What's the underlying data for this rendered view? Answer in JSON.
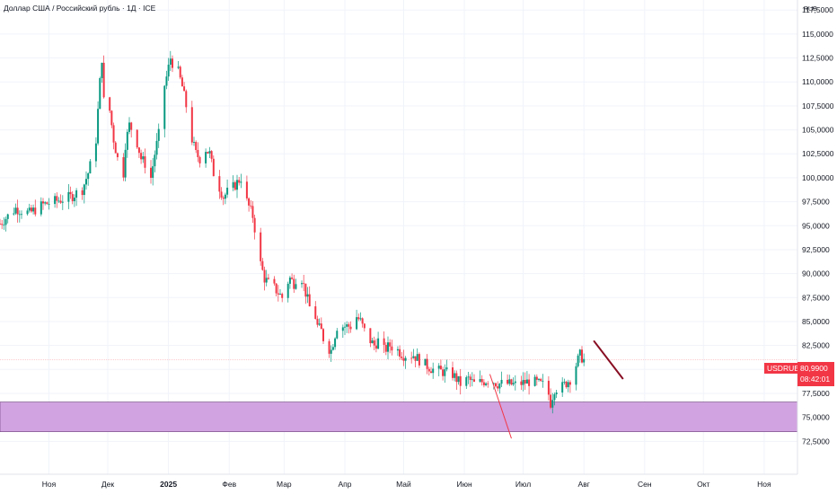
{
  "title": "Доллар США / Российский рубль · 1Д · ICE",
  "axis_unit": "RUB",
  "price_badge": {
    "symbol": "USDRUB",
    "price": "80,9900",
    "countdown": "08:42:01",
    "color": "#f23645"
  },
  "colors": {
    "up": "#089981",
    "down": "#f23645",
    "zone": "#d1a3e0",
    "trendline": "#880e23"
  },
  "chart_data": {
    "type": "candlestick",
    "title": "Доллар США / Российский рубль · 1Д · ICE",
    "y_ticks": [
      "72,5000",
      "75,0000",
      "77,5000",
      "80,0000",
      "82,5000",
      "85,0000",
      "87,5000",
      "90,0000",
      "92,5000",
      "95,0000",
      "97,5000",
      "100,0000",
      "102,5000",
      "105,0000",
      "107,5000",
      "110,0000",
      "112,5000",
      "115,0000",
      "117,5000"
    ],
    "ylim": [
      71.5,
      117.8
    ],
    "x_ticks": [
      {
        "label": "Ноя",
        "date": "2024-11-01"
      },
      {
        "label": "Дек",
        "date": "2024-12-01"
      },
      {
        "label": "2025",
        "date": "2025-01-01",
        "bold": true
      },
      {
        "label": "Фев",
        "date": "2025-02-01"
      },
      {
        "label": "Мар",
        "date": "2025-03-01"
      },
      {
        "label": "Апр",
        "date": "2025-04-01"
      },
      {
        "label": "Май",
        "date": "2025-05-01"
      },
      {
        "label": "Июн",
        "date": "2025-06-01"
      },
      {
        "label": "Июл",
        "date": "2025-07-01"
      },
      {
        "label": "Авг",
        "date": "2025-08-01"
      },
      {
        "label": "Сен",
        "date": "2025-09-01"
      },
      {
        "label": "Окт",
        "date": "2025-10-01"
      },
      {
        "label": "Ноя",
        "date": "2025-11-01"
      }
    ],
    "xlim": [
      "2024-10-07",
      "2025-11-18"
    ],
    "close_path": [
      [
        "2024-10-07",
        95.2
      ],
      [
        "2024-10-15",
        96.8
      ],
      [
        "2024-10-22",
        96.3
      ],
      [
        "2024-10-29",
        97.2
      ],
      [
        "2024-11-05",
        97.6
      ],
      [
        "2024-11-12",
        98.0
      ],
      [
        "2024-11-18",
        98.8
      ],
      [
        "2024-11-21",
        100.5
      ],
      [
        "2024-11-23",
        102.0
      ],
      [
        "2024-11-25",
        104.0
      ],
      [
        "2024-11-27",
        110.0
      ],
      [
        "2024-11-28",
        112.5
      ],
      [
        "2024-11-29",
        108.0
      ],
      [
        "2024-12-02",
        107.0
      ],
      [
        "2024-12-04",
        104.0
      ],
      [
        "2024-12-06",
        102.0
      ],
      [
        "2024-12-09",
        100.5
      ],
      [
        "2024-12-10",
        103.5
      ],
      [
        "2024-12-12",
        105.5
      ],
      [
        "2024-12-15",
        104.5
      ],
      [
        "2024-12-18",
        102.0
      ],
      [
        "2024-12-20",
        101.5
      ],
      [
        "2024-12-23",
        100.0
      ],
      [
        "2024-12-25",
        102.5
      ],
      [
        "2024-12-27",
        104.5
      ],
      [
        "2024-12-28",
        108.0
      ],
      [
        "2024-12-31",
        110.5
      ],
      [
        "2025-01-02",
        112.5
      ],
      [
        "2025-01-04",
        111.5
      ],
      [
        "2025-01-06",
        111.0
      ],
      [
        "2025-01-08",
        109.5
      ],
      [
        "2025-01-10",
        107.5
      ],
      [
        "2025-01-13",
        104.0
      ],
      [
        "2025-01-15",
        102.5
      ],
      [
        "2025-01-17",
        102.0
      ],
      [
        "2025-01-20",
        103.0
      ],
      [
        "2025-01-22",
        102.5
      ],
      [
        "2025-01-24",
        100.5
      ],
      [
        "2025-01-27",
        99.0
      ],
      [
        "2025-01-29",
        98.0
      ],
      [
        "2025-01-31",
        98.5
      ],
      [
        "2025-02-03",
        99.0
      ],
      [
        "2025-02-05",
        99.5
      ],
      [
        "2025-02-07",
        100.0
      ],
      [
        "2025-02-09",
        98.0
      ],
      [
        "2025-02-11",
        97.0
      ],
      [
        "2025-02-13",
        96.0
      ],
      [
        "2025-02-15",
        93.5
      ],
      [
        "2025-02-17",
        91.0
      ],
      [
        "2025-02-19",
        89.5
      ],
      [
        "2025-02-21",
        89.0
      ],
      [
        "2025-02-24",
        88.5
      ],
      [
        "2025-02-26",
        88.0
      ],
      [
        "2025-02-28",
        87.5
      ],
      [
        "2025-03-01",
        88.5
      ],
      [
        "2025-03-04",
        89.5
      ],
      [
        "2025-03-06",
        89.0
      ],
      [
        "2025-03-08",
        90.0
      ],
      [
        "2025-03-10",
        89.5
      ],
      [
        "2025-03-12",
        88.0
      ],
      [
        "2025-03-14",
        86.5
      ],
      [
        "2025-03-16",
        86.5
      ],
      [
        "2025-03-18",
        84.5
      ],
      [
        "2025-03-20",
        84.0
      ],
      [
        "2025-03-22",
        82.5
      ],
      [
        "2025-03-25",
        82.0
      ],
      [
        "2025-03-28",
        84.5
      ],
      [
        "2025-04-01",
        84.5
      ],
      [
        "2025-04-04",
        84.5
      ],
      [
        "2025-04-07",
        85.5
      ],
      [
        "2025-04-09",
        85.0
      ],
      [
        "2025-04-11",
        84.0
      ],
      [
        "2025-04-14",
        83.0
      ],
      [
        "2025-04-16",
        82.5
      ],
      [
        "2025-04-18",
        83.0
      ],
      [
        "2025-04-21",
        82.0
      ],
      [
        "2025-04-24",
        82.5
      ],
      [
        "2025-04-28",
        82.0
      ],
      [
        "2025-05-01",
        81.5
      ],
      [
        "2025-05-06",
        81.5
      ],
      [
        "2025-05-12",
        80.5
      ],
      [
        "2025-05-16",
        80.0
      ],
      [
        "2025-05-20",
        79.8
      ],
      [
        "2025-05-26",
        79.5
      ],
      [
        "2025-05-30",
        78.5
      ],
      [
        "2025-06-03",
        79.0
      ],
      [
        "2025-06-06",
        78.5
      ],
      [
        "2025-06-10",
        78.7
      ],
      [
        "2025-06-14",
        79.0
      ],
      [
        "2025-06-18",
        78.5
      ],
      [
        "2025-06-23",
        78.5
      ],
      [
        "2025-06-27",
        78.4
      ],
      [
        "2025-07-01",
        78.6
      ],
      [
        "2025-07-05",
        78.8
      ],
      [
        "2025-07-09",
        78.5
      ],
      [
        "2025-07-13",
        78.3
      ],
      [
        "2025-07-15",
        76.5
      ],
      [
        "2025-07-17",
        78.0
      ],
      [
        "2025-07-21",
        78.2
      ],
      [
        "2025-07-25",
        79.0
      ],
      [
        "2025-07-28",
        80.5
      ],
      [
        "2025-07-30",
        81.5
      ],
      [
        "2025-08-01",
        80.99
      ]
    ],
    "last_price": 80.99,
    "support_zone": [
      73.5,
      76.6
    ],
    "horizontal_line": 80.99,
    "trendlines": [
      {
        "from": [
          "2025-06-14",
          79.5
        ],
        "to": [
          "2025-06-25",
          72.8
        ],
        "color": "#f23645"
      },
      {
        "from": [
          "2025-08-06",
          83.0
        ],
        "to": [
          "2025-08-21",
          79.0
        ],
        "color": "#880e23"
      }
    ]
  }
}
